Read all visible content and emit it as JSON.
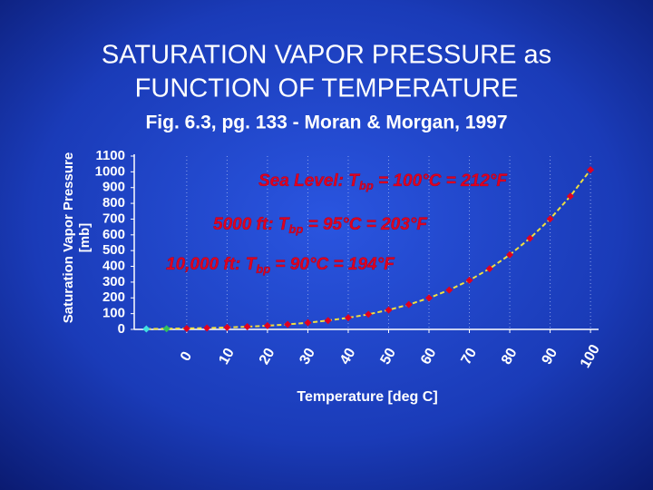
{
  "chart_data": {
    "type": "scatter",
    "title": [
      "SATURATION VAPOR PRESSURE as",
      "FUNCTION OF TEMPERATURE"
    ],
    "subtitle": "Fig. 6.3, pg. 133 - Moran & Morgan, 1997",
    "y_label": [
      "Saturation Vapor Pressure",
      "[mb]"
    ],
    "x_label": "Temperature [deg C]",
    "x": [
      -10,
      -5,
      0,
      5,
      10,
      15,
      20,
      25,
      30,
      35,
      40,
      45,
      50,
      55,
      60,
      65,
      70,
      75,
      80,
      85,
      90,
      95,
      100
    ],
    "values": [
      2.9,
      4.2,
      6.1,
      8.7,
      12.3,
      17.0,
      23.4,
      31.7,
      42.4,
      56.2,
      73.8,
      95.8,
      123.4,
      157.4,
      199.3,
      250.1,
      311.6,
      385.5,
      473.6,
      578,
      701,
      845,
      1013
    ],
    "point_colors": [
      "#40e0e0",
      "#30c060",
      "#e00020",
      "#e00020",
      "#e00020",
      "#e00020",
      "#e00020",
      "#e00020",
      "#e00020",
      "#e00020",
      "#e00020",
      "#e00020",
      "#e00020",
      "#e00020",
      "#e00020",
      "#e00020",
      "#e00020",
      "#e00020",
      "#e00020",
      "#e00020",
      "#e00020",
      "#e00020",
      "#e00020"
    ],
    "line_color": "#f0e040",
    "xlim": [
      -13,
      102
    ],
    "ylim": [
      0,
      1100
    ],
    "xticks": [
      0,
      10,
      20,
      30,
      40,
      50,
      60,
      70,
      80,
      90,
      100
    ],
    "yticks": [
      0,
      100,
      200,
      300,
      400,
      500,
      600,
      700,
      800,
      900,
      1000,
      1100
    ],
    "grid": true,
    "annotations": [
      {
        "text": "Sea Level: T",
        "sub": "bp",
        "rest": " = 100°C = 212°F"
      },
      {
        "text": "5000 ft:  T",
        "sub": "bp",
        "rest": " = 95°C = 203°F"
      },
      {
        "text": "10,000 ft: T",
        "sub": "bp",
        "rest": " = 90°C = 194°F"
      }
    ]
  }
}
